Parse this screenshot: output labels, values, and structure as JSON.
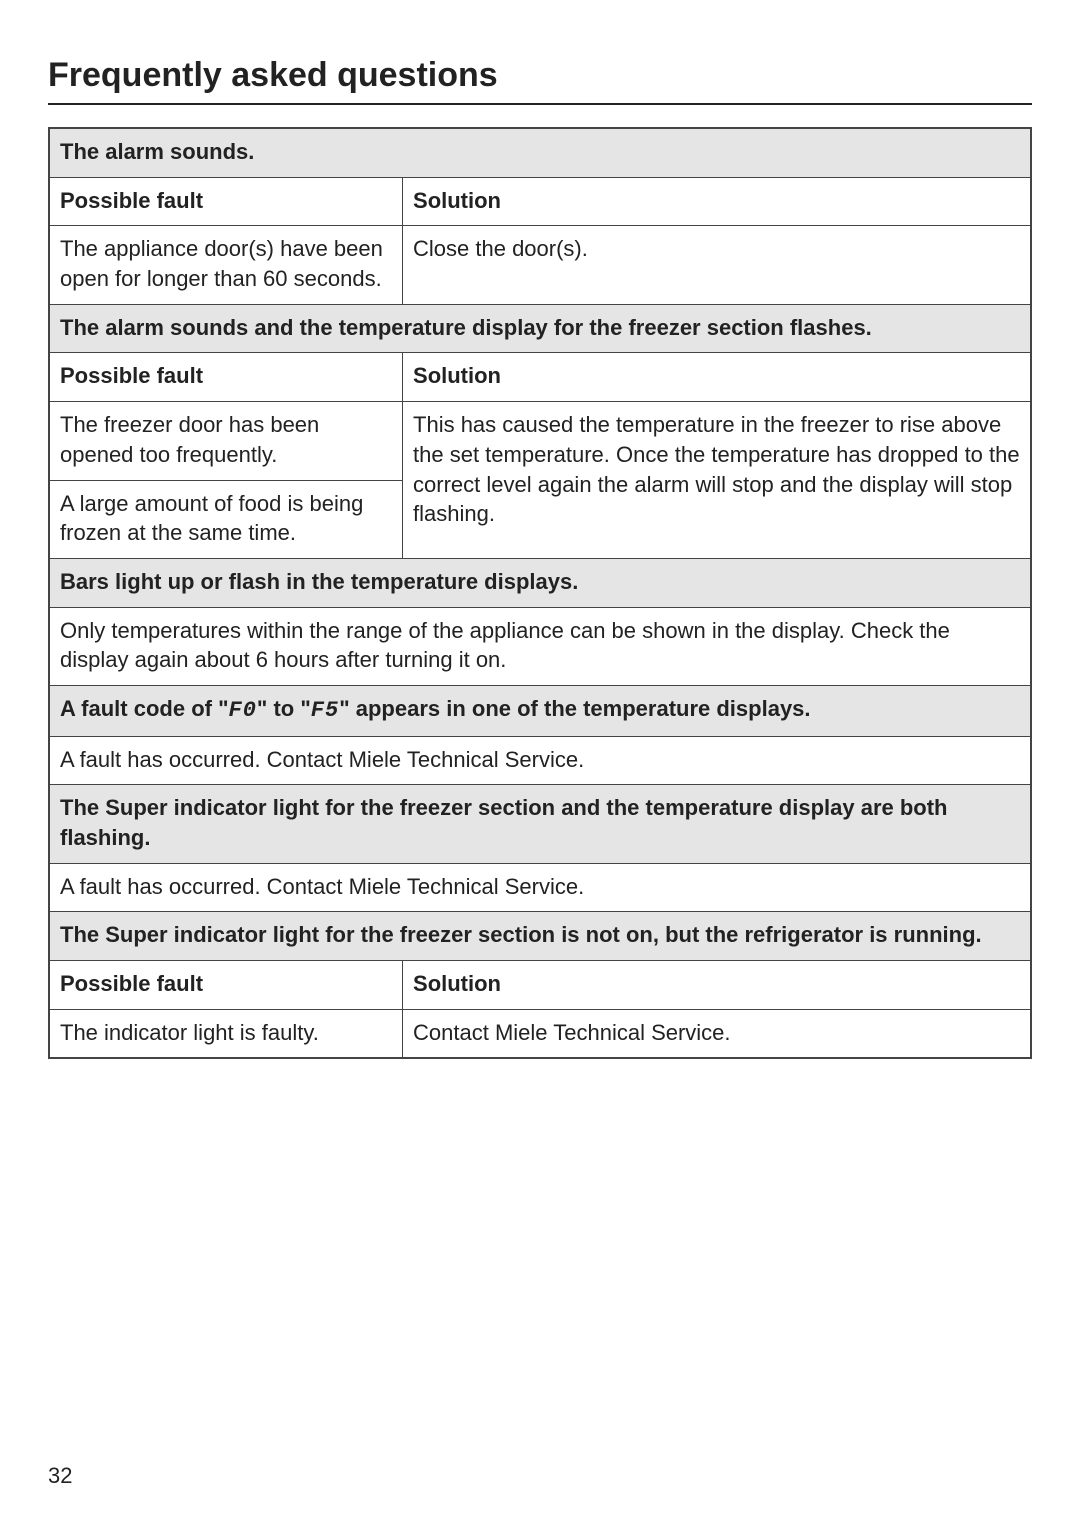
{
  "page": {
    "title": "Frequently asked questions",
    "number": "32"
  },
  "labels": {
    "possible_fault": "Possible fault",
    "solution": "Solution"
  },
  "sections": [
    {
      "header": "The alarm sounds.",
      "type": "fault-solution",
      "rows": [
        {
          "fault": "The appliance door(s) have been open for longer than 60 seconds.",
          "solution": "Close the door(s)."
        }
      ]
    },
    {
      "header": "The alarm sounds and the temperature display for the freezer section flashes.",
      "type": "fault-solution-shared",
      "faults": [
        "The freezer door has been opened too frequently.",
        "A large amount of food is being frozen at the same time."
      ],
      "solution": "This has caused the temperature in the freezer to rise above the set temperature. Once the temperature has dropped to the correct level again the alarm will stop and the display will stop flashing."
    },
    {
      "header": "Bars light up or flash in the temperature displays.",
      "type": "info",
      "info": "Only temperatures within the range of the appliance can be shown in the display. Check the display again about 6 hours after turning it on."
    },
    {
      "header_parts": {
        "before_code1": "A fault code of \"",
        "code1": "F0",
        "between": "\" to \"",
        "code2": "F5",
        "after_code2": "\" appears in one of the temperature displays."
      },
      "type": "info",
      "info": "A fault has occurred.  Contact Miele Technical Service."
    },
    {
      "header": "The Super indicator light for the freezer section and the temperature display are both flashing.",
      "type": "info",
      "info": "A fault has occurred.  Contact Miele Technical Service."
    },
    {
      "header": "The Super indicator light for the freezer section is not on, but the refrigerator is running.",
      "type": "fault-solution",
      "rows": [
        {
          "fault": "The indicator light is faulty.",
          "solution": "Contact Miele Technical Service."
        }
      ]
    }
  ]
}
